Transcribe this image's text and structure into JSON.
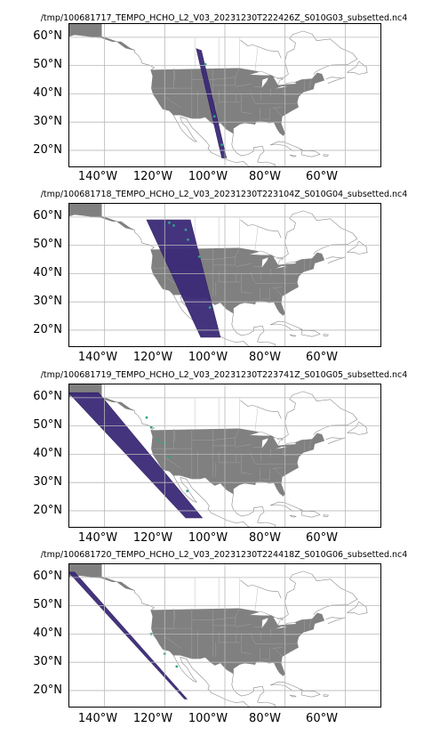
{
  "panels": [
    {
      "title": "/tmp/100681717_TEMPO_HCHO_L2_V03_20231230T222426Z_S010G03_subsetted.nc4",
      "lat_labels": [
        "60°N",
        "50°N",
        "40°N",
        "30°N",
        "20°N"
      ],
      "lon_labels": [
        "140°W",
        "120°W",
        "100°W",
        "80°W",
        "60°W"
      ]
    },
    {
      "title": "/tmp/100681718_TEMPO_HCHO_L2_V03_20231230T223104Z_S010G04_subsetted.nc4",
      "lat_labels": [
        "60°N",
        "50°N",
        "40°N",
        "30°N",
        "20°N"
      ],
      "lon_labels": [
        "140°W",
        "120°W",
        "100°W",
        "80°W",
        "60°W"
      ]
    },
    {
      "title": "/tmp/100681719_TEMPO_HCHO_L2_V03_20231230T223741Z_S010G05_subsetted.nc4",
      "lat_labels": [
        "60°N",
        "50°N",
        "40°N",
        "30°N",
        "20°N"
      ],
      "lon_labels": [
        "140°W",
        "120°W",
        "100°W",
        "80°W",
        "60°W"
      ]
    },
    {
      "title": "/tmp/100681720_TEMPO_HCHO_L2_V03_20231230T224418Z_S010G06_subsetted.nc4",
      "lat_labels": [
        "60°N",
        "50°N",
        "40°N",
        "30°N",
        "20°N"
      ],
      "lon_labels": [
        "140°W",
        "120°W",
        "100°W",
        "80°W",
        "60°W"
      ]
    }
  ],
  "colors": {
    "land": "#808080",
    "coast": "#8a8a8a",
    "grid": "#b8b8b8",
    "swath": "#3b2a78",
    "swath_dark": "#2d1b5c",
    "swath_highlight": "#2fa38a"
  }
}
